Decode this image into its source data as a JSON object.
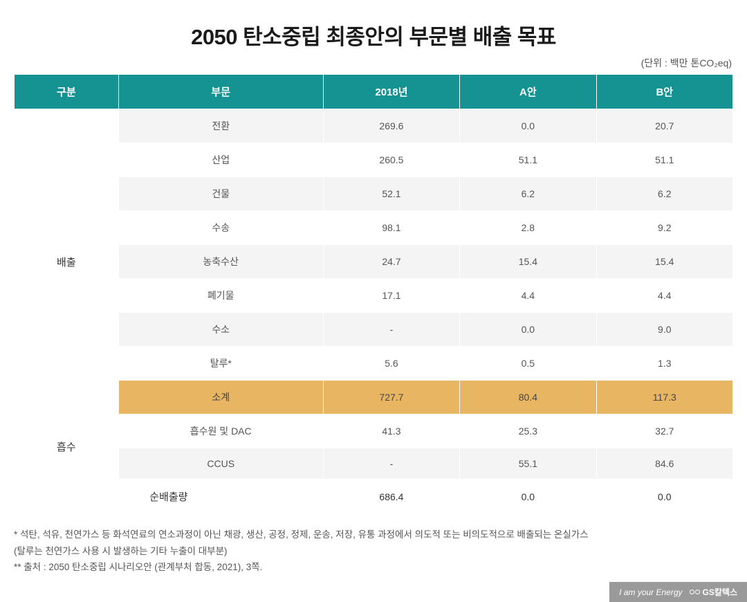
{
  "title": "2050 탄소중립 최종안의 부문별 배출 목표",
  "unit": "(단위 : 백만 톤CO₂eq)",
  "headers": {
    "category": "구분",
    "sector": "부문",
    "y2018": "2018년",
    "planA": "A안",
    "planB": "B안"
  },
  "categories": {
    "emission": "배출",
    "absorption": "흡수"
  },
  "rows": {
    "r0": {
      "sector": "전환",
      "y2018": "269.6",
      "a": "0.0",
      "b": "20.7"
    },
    "r1": {
      "sector": "산업",
      "y2018": "260.5",
      "a": "51.1",
      "b": "51.1"
    },
    "r2": {
      "sector": "건물",
      "y2018": "52.1",
      "a": "6.2",
      "b": "6.2"
    },
    "r3": {
      "sector": "수송",
      "y2018": "98.1",
      "a": "2.8",
      "b": "9.2"
    },
    "r4": {
      "sector": "농축수산",
      "y2018": "24.7",
      "a": "15.4",
      "b": "15.4"
    },
    "r5": {
      "sector": "폐기물",
      "y2018": "17.1",
      "a": "4.4",
      "b": "4.4"
    },
    "r6": {
      "sector": "수소",
      "y2018": "-",
      "a": "0.0",
      "b": "9.0"
    },
    "r7": {
      "sector": "탈루*",
      "y2018": "5.6",
      "a": "0.5",
      "b": "1.3"
    },
    "subtotal": {
      "sector": "소계",
      "y2018": "727.7",
      "a": "80.4",
      "b": "117.3"
    },
    "abs0": {
      "sector": "흡수원 및 DAC",
      "y2018": "41.3",
      "a": "25.3",
      "b": "32.7"
    },
    "abs1": {
      "sector": "CCUS",
      "y2018": "-",
      "a": "55.1",
      "b": "84.6"
    },
    "net": {
      "sector": "순배출량",
      "y2018": "686.4",
      "a": "0.0",
      "b": "0.0"
    }
  },
  "footnotes": {
    "f1": "* 석탄, 석유, 천연가스 등 화석연료의 연소과정이 아닌 채광, 생산, 공정, 정제, 운송, 저장, 유통 과정에서 의도적 또는 비의도적으로 배출되는 온실가스",
    "f1sub": "   (탈루는 천연가스 사용 시 발생하는 기타 누출이 대부분)",
    "f2": "** 출처 : 2050 탄소중립 시나리오안 (관계부처 합동, 2021), 3쪽."
  },
  "footer": {
    "tagline": "I am your Energy",
    "brand": "GS칼텍스"
  },
  "style": {
    "header_bg": "#159393",
    "header_fg": "#ffffff",
    "row_bg": "#f4f4f4",
    "row_alt_bg": "#ffffff",
    "subtotal_bg": "#e8b663",
    "text_color": "#555",
    "title_color": "#1a1a1a",
    "title_fontsize": 31,
    "cell_fontsize": 14,
    "header_fontsize": 15
  }
}
